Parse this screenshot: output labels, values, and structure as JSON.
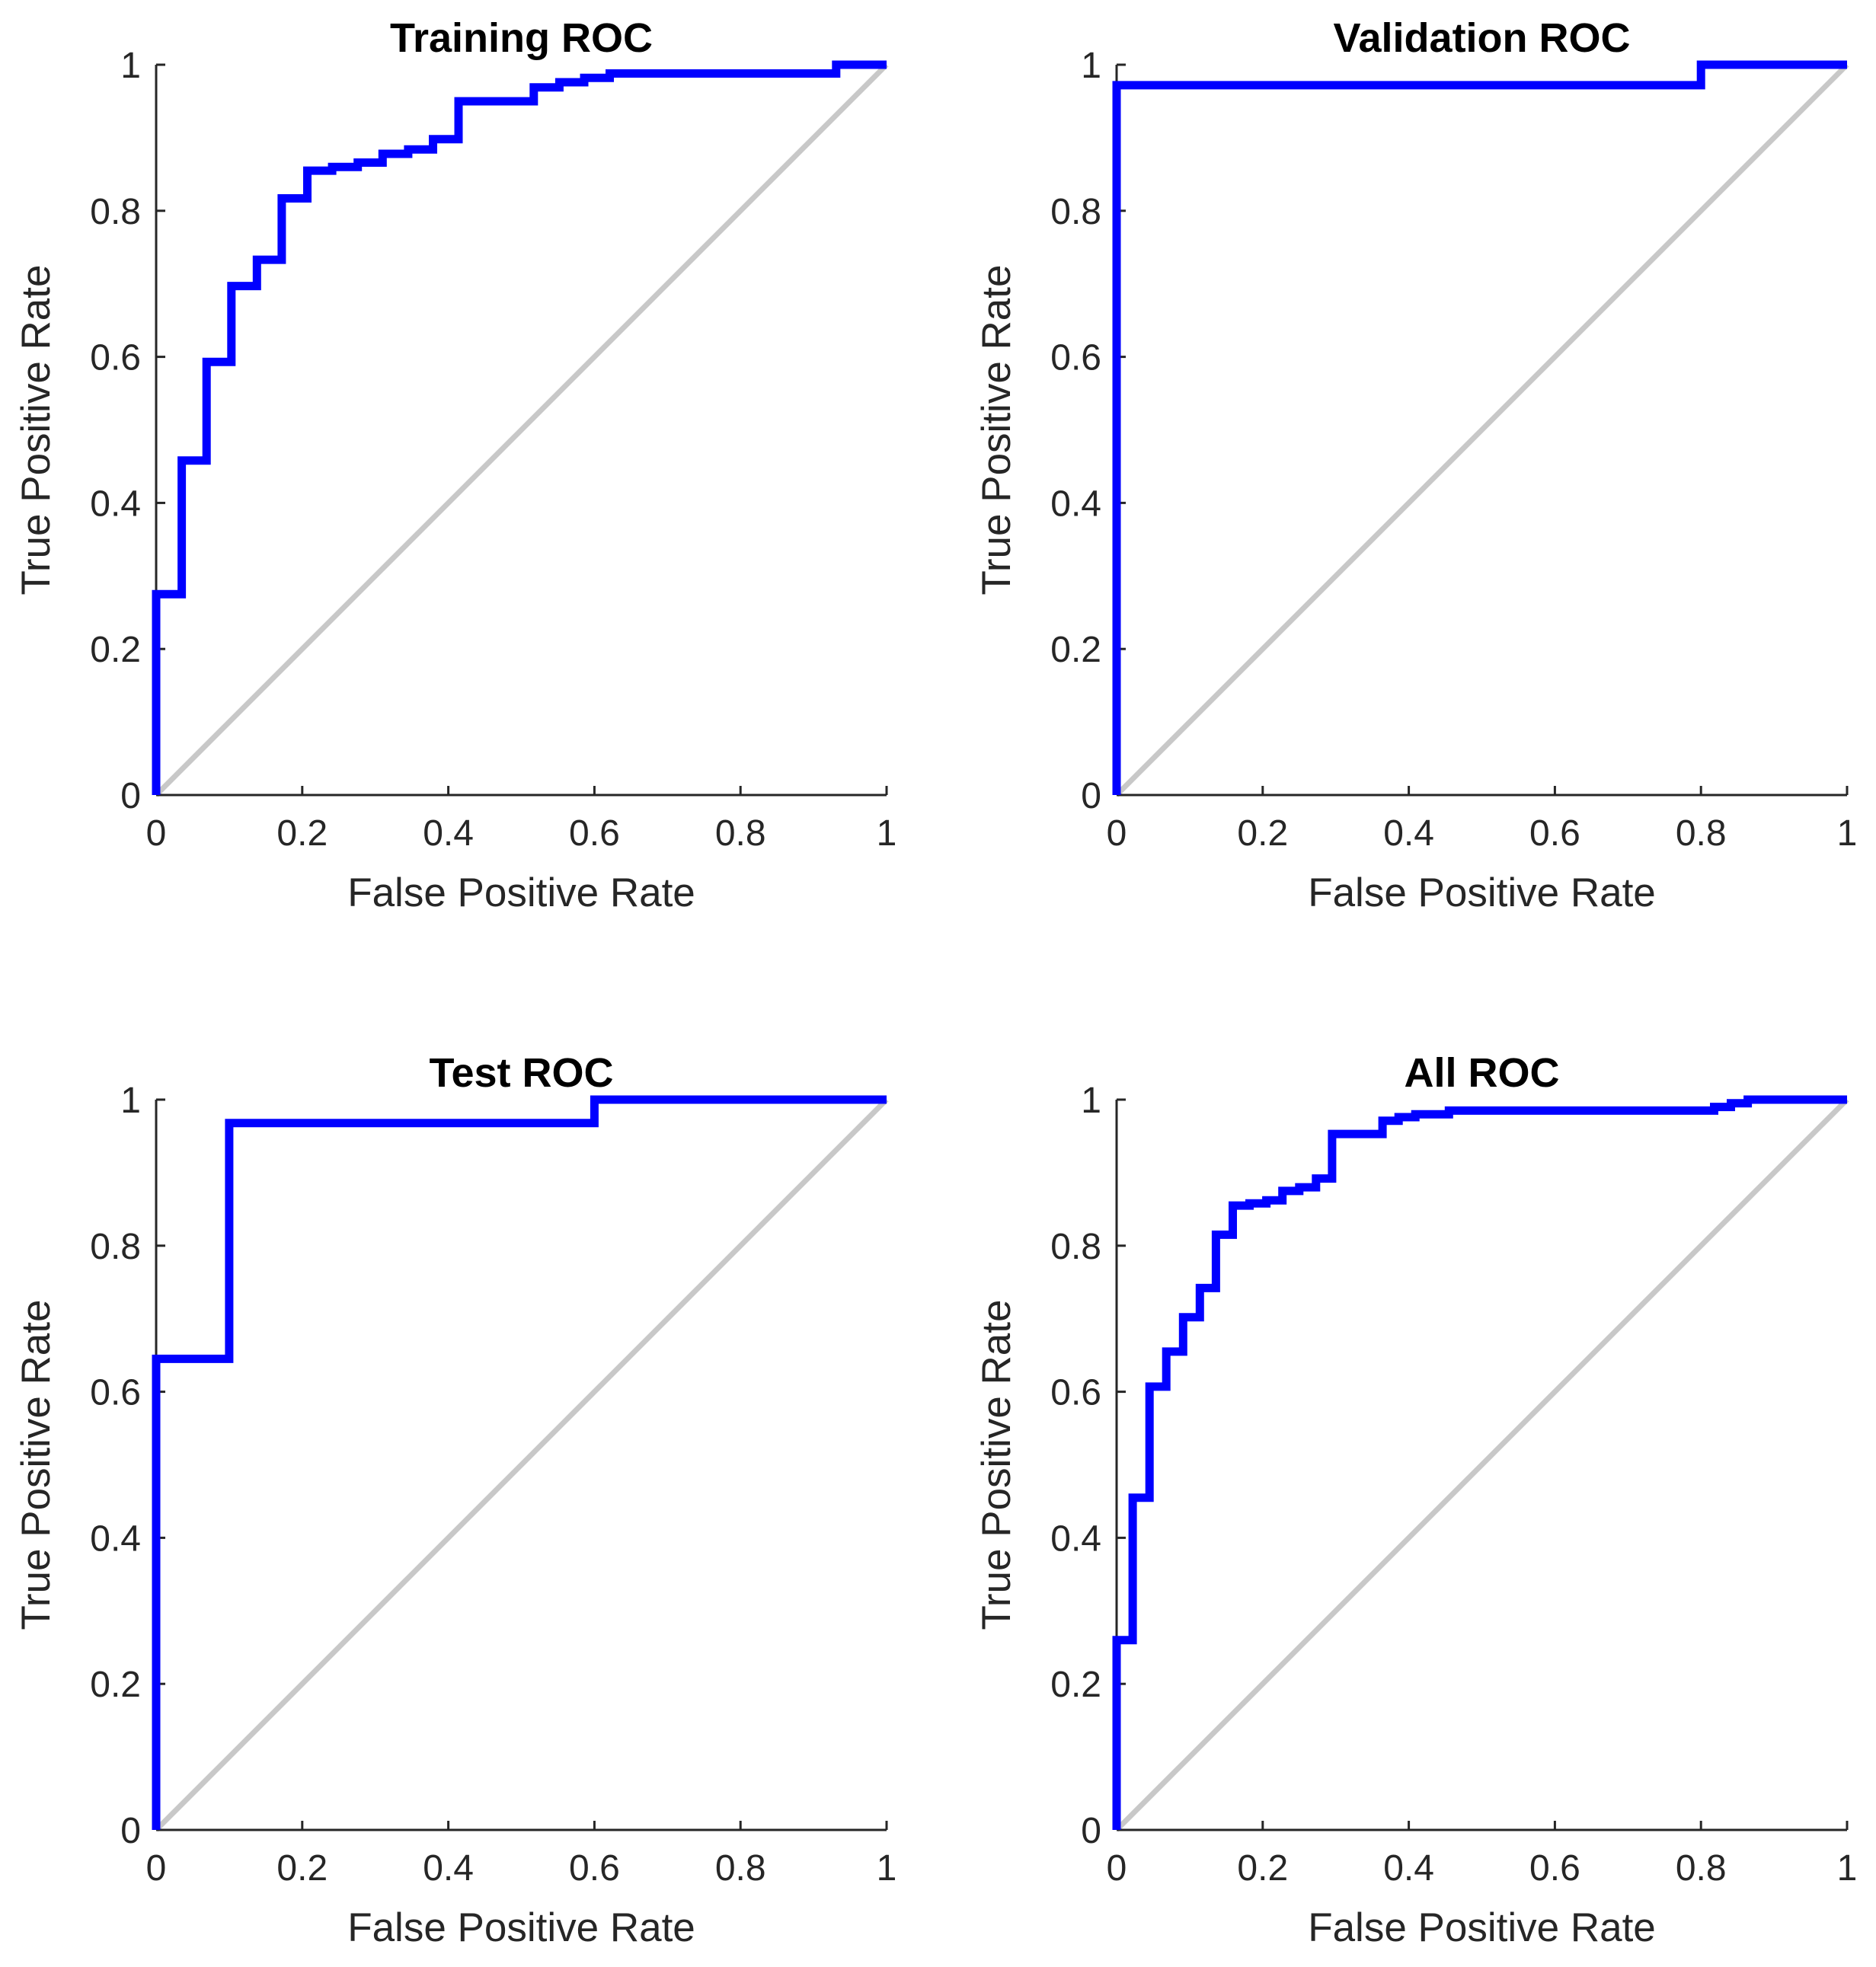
{
  "chart_data": [
    {
      "type": "line",
      "title": "Training ROC",
      "xlabel": "False Positive Rate",
      "ylabel": "True Positive Rate",
      "xlim": [
        0,
        1
      ],
      "ylim": [
        0,
        1
      ],
      "xticks": [
        "0",
        "0.2",
        "0.4",
        "0.6",
        "0.8",
        "1"
      ],
      "yticks": [
        "0",
        "0.2",
        "0.4",
        "0.6",
        "0.8",
        "1"
      ],
      "diagonal": true,
      "series": [
        {
          "name": "ROC",
          "color": "#0000ff",
          "x": [
            0,
            0,
            0.035,
            0.035,
            0.069,
            0.069,
            0.103,
            0.103,
            0.138,
            0.138,
            0.172,
            0.172,
            0.207,
            0.207,
            0.241,
            0.241,
            0.276,
            0.276,
            0.31,
            0.31,
            0.345,
            0.345,
            0.379,
            0.379,
            0.414,
            0.414,
            0.517,
            0.517,
            0.552,
            0.552,
            0.586,
            0.586,
            0.621,
            0.621,
            0.931,
            0.931,
            1
          ],
          "y": [
            0,
            0.275,
            0.275,
            0.458,
            0.458,
            0.593,
            0.593,
            0.697,
            0.697,
            0.733,
            0.733,
            0.817,
            0.817,
            0.855,
            0.855,
            0.86,
            0.86,
            0.866,
            0.866,
            0.878,
            0.878,
            0.884,
            0.884,
            0.898,
            0.898,
            0.95,
            0.95,
            0.969,
            0.969,
            0.976,
            0.976,
            0.982,
            0.982,
            0.988,
            0.988,
            1,
            1
          ]
        }
      ]
    },
    {
      "type": "line",
      "title": "Validation ROC",
      "xlabel": "False Positive Rate",
      "ylabel": "True Positive Rate",
      "xlim": [
        0,
        1
      ],
      "ylim": [
        0,
        1
      ],
      "xticks": [
        "0",
        "0.2",
        "0.4",
        "0.6",
        "0.8",
        "1"
      ],
      "yticks": [
        "0",
        "0.2",
        "0.4",
        "0.6",
        "0.8",
        "1"
      ],
      "diagonal": true,
      "series": [
        {
          "name": "ROC",
          "color": "#0000ff",
          "x": [
            0,
            0,
            0.8,
            0.8,
            1
          ],
          "y": [
            0,
            0.972,
            0.972,
            1,
            1
          ]
        }
      ]
    },
    {
      "type": "line",
      "title": "Test ROC",
      "xlabel": "False Positive Rate",
      "ylabel": "True Positive Rate",
      "xlim": [
        0,
        1
      ],
      "ylim": [
        0,
        1
      ],
      "xticks": [
        "0",
        "0.2",
        "0.4",
        "0.6",
        "0.8",
        "1"
      ],
      "yticks": [
        "0",
        "0.2",
        "0.4",
        "0.6",
        "0.8",
        "1"
      ],
      "diagonal": true,
      "series": [
        {
          "name": "ROC",
          "color": "#0000ff",
          "x": [
            0,
            0,
            0.1,
            0.1,
            0.6,
            0.6,
            1
          ],
          "y": [
            0,
            0.645,
            0.645,
            0.968,
            0.968,
            1,
            1
          ]
        }
      ]
    },
    {
      "type": "line",
      "title": "All ROC",
      "xlabel": "False Positive Rate",
      "ylabel": "True Positive Rate",
      "xlim": [
        0,
        1
      ],
      "ylim": [
        0,
        1
      ],
      "xticks": [
        "0",
        "0.2",
        "0.4",
        "0.6",
        "0.8",
        "1"
      ],
      "yticks": [
        "0",
        "0.2",
        "0.4",
        "0.6",
        "0.8",
        "1"
      ],
      "diagonal": true,
      "series": [
        {
          "name": "ROC",
          "color": "#0000ff",
          "x": [
            0,
            0,
            0.022,
            0.022,
            0.045,
            0.045,
            0.068,
            0.068,
            0.091,
            0.091,
            0.114,
            0.114,
            0.136,
            0.136,
            0.159,
            0.159,
            0.182,
            0.182,
            0.205,
            0.205,
            0.227,
            0.227,
            0.25,
            0.25,
            0.273,
            0.273,
            0.295,
            0.295,
            0.364,
            0.364,
            0.386,
            0.386,
            0.409,
            0.409,
            0.455,
            0.455,
            0.818,
            0.818,
            0.841,
            0.841,
            0.864,
            0.864,
            1
          ],
          "y": [
            0,
            0.26,
            0.26,
            0.455,
            0.455,
            0.607,
            0.607,
            0.655,
            0.655,
            0.702,
            0.702,
            0.742,
            0.742,
            0.815,
            0.815,
            0.855,
            0.855,
            0.858,
            0.858,
            0.862,
            0.862,
            0.875,
            0.875,
            0.88,
            0.88,
            0.892,
            0.892,
            0.953,
            0.953,
            0.971,
            0.971,
            0.976,
            0.976,
            0.98,
            0.98,
            0.985,
            0.985,
            0.99,
            0.99,
            0.995,
            0.995,
            1,
            1
          ]
        }
      ]
    }
  ]
}
